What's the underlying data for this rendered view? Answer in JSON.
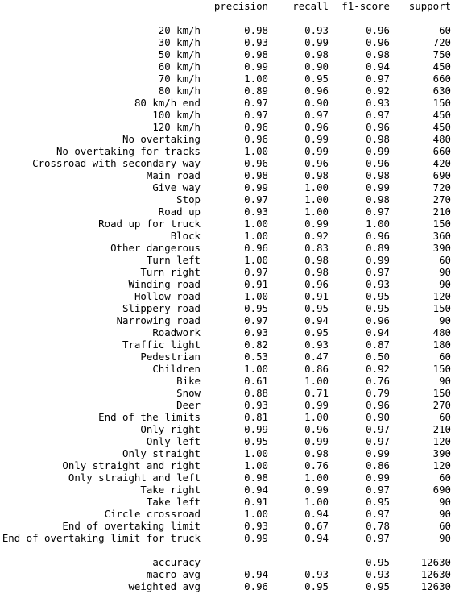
{
  "header": {
    "precision": "precision",
    "recall": "recall",
    "f1": "f1-score",
    "support": "support"
  },
  "classes": [
    {
      "label": "20 km/h",
      "precision": "0.98",
      "recall": "0.93",
      "f1": "0.96",
      "support": "60"
    },
    {
      "label": "30 km/h",
      "precision": "0.93",
      "recall": "0.99",
      "f1": "0.96",
      "support": "720"
    },
    {
      "label": "50 km/h",
      "precision": "0.98",
      "recall": "0.98",
      "f1": "0.98",
      "support": "750"
    },
    {
      "label": "60 km/h",
      "precision": "0.99",
      "recall": "0.90",
      "f1": "0.94",
      "support": "450"
    },
    {
      "label": "70 km/h",
      "precision": "1.00",
      "recall": "0.95",
      "f1": "0.97",
      "support": "660"
    },
    {
      "label": "80 km/h",
      "precision": "0.89",
      "recall": "0.96",
      "f1": "0.92",
      "support": "630"
    },
    {
      "label": "80 km/h end",
      "precision": "0.97",
      "recall": "0.90",
      "f1": "0.93",
      "support": "150"
    },
    {
      "label": "100 km/h",
      "precision": "0.97",
      "recall": "0.97",
      "f1": "0.97",
      "support": "450"
    },
    {
      "label": "120 km/h",
      "precision": "0.96",
      "recall": "0.96",
      "f1": "0.96",
      "support": "450"
    },
    {
      "label": "No overtaking",
      "precision": "0.96",
      "recall": "0.99",
      "f1": "0.98",
      "support": "480"
    },
    {
      "label": "No overtaking for tracks",
      "precision": "1.00",
      "recall": "0.99",
      "f1": "0.99",
      "support": "660"
    },
    {
      "label": "Crossroad with secondary way",
      "precision": "0.96",
      "recall": "0.96",
      "f1": "0.96",
      "support": "420"
    },
    {
      "label": "Main road",
      "precision": "0.98",
      "recall": "0.98",
      "f1": "0.98",
      "support": "690"
    },
    {
      "label": "Give way",
      "precision": "0.99",
      "recall": "1.00",
      "f1": "0.99",
      "support": "720"
    },
    {
      "label": "Stop",
      "precision": "0.97",
      "recall": "1.00",
      "f1": "0.98",
      "support": "270"
    },
    {
      "label": "Road up",
      "precision": "0.93",
      "recall": "1.00",
      "f1": "0.97",
      "support": "210"
    },
    {
      "label": "Road up for truck",
      "precision": "1.00",
      "recall": "0.99",
      "f1": "1.00",
      "support": "150"
    },
    {
      "label": "Block",
      "precision": "1.00",
      "recall": "0.92",
      "f1": "0.96",
      "support": "360"
    },
    {
      "label": "Other dangerous",
      "precision": "0.96",
      "recall": "0.83",
      "f1": "0.89",
      "support": "390"
    },
    {
      "label": "Turn left",
      "precision": "1.00",
      "recall": "0.98",
      "f1": "0.99",
      "support": "60"
    },
    {
      "label": "Turn right",
      "precision": "0.97",
      "recall": "0.98",
      "f1": "0.97",
      "support": "90"
    },
    {
      "label": "Winding road",
      "precision": "0.91",
      "recall": "0.96",
      "f1": "0.93",
      "support": "90"
    },
    {
      "label": "Hollow road",
      "precision": "1.00",
      "recall": "0.91",
      "f1": "0.95",
      "support": "120"
    },
    {
      "label": "Slippery road",
      "precision": "0.95",
      "recall": "0.95",
      "f1": "0.95",
      "support": "150"
    },
    {
      "label": "Narrowing road",
      "precision": "0.97",
      "recall": "0.94",
      "f1": "0.96",
      "support": "90"
    },
    {
      "label": "Roadwork",
      "precision": "0.93",
      "recall": "0.95",
      "f1": "0.94",
      "support": "480"
    },
    {
      "label": "Traffic light",
      "precision": "0.82",
      "recall": "0.93",
      "f1": "0.87",
      "support": "180"
    },
    {
      "label": "Pedestrian",
      "precision": "0.53",
      "recall": "0.47",
      "f1": "0.50",
      "support": "60"
    },
    {
      "label": "Children",
      "precision": "1.00",
      "recall": "0.86",
      "f1": "0.92",
      "support": "150"
    },
    {
      "label": "Bike",
      "precision": "0.61",
      "recall": "1.00",
      "f1": "0.76",
      "support": "90"
    },
    {
      "label": "Snow",
      "precision": "0.88",
      "recall": "0.71",
      "f1": "0.79",
      "support": "150"
    },
    {
      "label": "Deer",
      "precision": "0.93",
      "recall": "0.99",
      "f1": "0.96",
      "support": "270"
    },
    {
      "label": "End of the limits",
      "precision": "0.81",
      "recall": "1.00",
      "f1": "0.90",
      "support": "60"
    },
    {
      "label": "Only right",
      "precision": "0.99",
      "recall": "0.96",
      "f1": "0.97",
      "support": "210"
    },
    {
      "label": "Only left",
      "precision": "0.95",
      "recall": "0.99",
      "f1": "0.97",
      "support": "120"
    },
    {
      "label": "Only straight",
      "precision": "1.00",
      "recall": "0.98",
      "f1": "0.99",
      "support": "390"
    },
    {
      "label": "Only straight and right",
      "precision": "1.00",
      "recall": "0.76",
      "f1": "0.86",
      "support": "120"
    },
    {
      "label": "Only straight and left",
      "precision": "0.98",
      "recall": "1.00",
      "f1": "0.99",
      "support": "60"
    },
    {
      "label": "Take right",
      "precision": "0.94",
      "recall": "0.99",
      "f1": "0.97",
      "support": "690"
    },
    {
      "label": "Take left",
      "precision": "0.91",
      "recall": "1.00",
      "f1": "0.95",
      "support": "90"
    },
    {
      "label": "Circle crossroad",
      "precision": "1.00",
      "recall": "0.94",
      "f1": "0.97",
      "support": "90"
    },
    {
      "label": "End of overtaking limit",
      "precision": "0.93",
      "recall": "0.67",
      "f1": "0.78",
      "support": "60"
    },
    {
      "label": "End of overtaking limit for truck",
      "precision": "0.99",
      "recall": "0.94",
      "f1": "0.97",
      "support": "90"
    }
  ],
  "summary": [
    {
      "label": "accuracy",
      "precision": "",
      "recall": "",
      "f1": "0.95",
      "support": "12630"
    },
    {
      "label": "macro avg",
      "precision": "0.94",
      "recall": "0.93",
      "f1": "0.93",
      "support": "12630"
    },
    {
      "label": "weighted avg",
      "precision": "0.96",
      "recall": "0.95",
      "f1": "0.95",
      "support": "12630"
    }
  ]
}
